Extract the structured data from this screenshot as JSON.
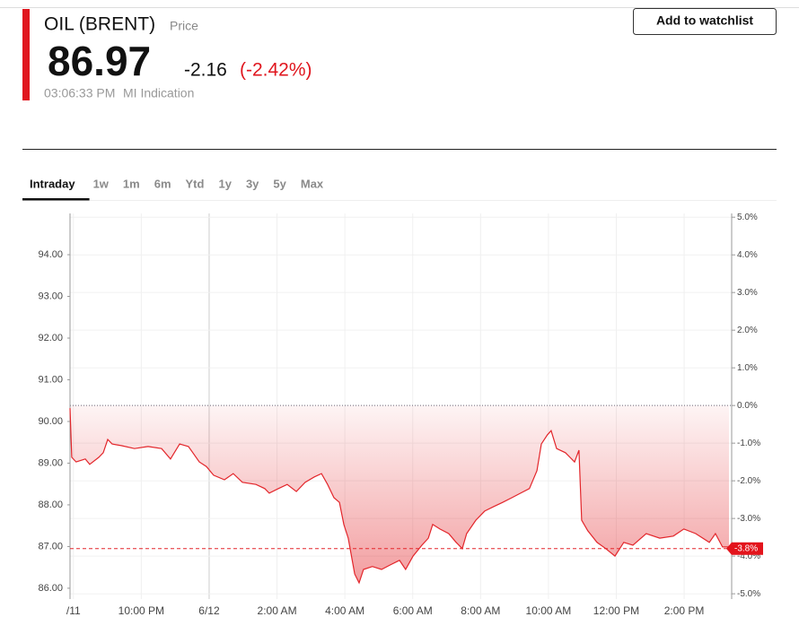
{
  "header": {
    "symbol": "OIL (BRENT)",
    "symbol_note": "Price",
    "price": "86.97",
    "change": "-2.16",
    "change_percent": "(-2.42%)",
    "time": "03:06:33 PM",
    "source": "MI Indication",
    "button": "Add to watchlist"
  },
  "tabs": [
    "Intraday",
    "1w",
    "1m",
    "6m",
    "Ytd",
    "1y",
    "3y",
    "5y",
    "Max"
  ],
  "selected_tab": "Intraday",
  "chart_data": {
    "type": "area",
    "series": [
      {
        "name": "OIL (BRENT)",
        "color": "#e3262b",
        "x": [
          -4.1,
          -4.05,
          -3.92,
          -3.65,
          -3.52,
          -3.25,
          -3.12,
          -2.99,
          -2.86,
          -2.59,
          -2.2,
          -1.8,
          -1.4,
          -1.14,
          -0.87,
          -0.61,
          -0.48,
          -0.29,
          -0.08,
          0.13,
          0.45,
          0.71,
          0.98,
          1.38,
          1.64,
          1.77,
          2.04,
          2.3,
          2.57,
          2.83,
          3.1,
          3.31,
          3.49,
          3.68,
          3.84,
          3.97,
          4.1,
          4.29,
          4.42,
          4.55,
          4.81,
          5.08,
          5.34,
          5.61,
          5.79,
          6.01,
          6.27,
          6.46,
          6.59,
          6.8,
          7.06,
          7.28,
          7.46,
          7.59,
          7.86,
          8.12,
          8.39,
          8.65,
          8.92,
          9.18,
          9.44,
          9.66,
          9.79,
          9.97,
          10.08,
          10.24,
          10.5,
          10.77,
          10.9,
          10.98,
          11.16,
          11.43,
          11.69,
          11.96,
          12.22,
          12.49,
          12.88,
          13.28,
          13.68,
          13.99,
          14.34,
          14.74,
          14.92,
          15.13,
          15.32
        ],
        "values": [
          90.32,
          89.14,
          89.03,
          89.1,
          88.97,
          89.14,
          89.25,
          89.57,
          89.46,
          89.42,
          89.35,
          89.4,
          89.35,
          89.1,
          89.46,
          89.4,
          89.25,
          89.03,
          88.92,
          88.71,
          88.6,
          88.75,
          88.54,
          88.49,
          88.39,
          88.28,
          88.39,
          88.49,
          88.32,
          88.54,
          88.67,
          88.75,
          88.49,
          88.17,
          88.06,
          87.53,
          87.2,
          86.34,
          86.13,
          86.45,
          86.52,
          86.45,
          86.56,
          86.67,
          86.45,
          86.77,
          87.03,
          87.2,
          87.53,
          87.42,
          87.31,
          87.1,
          86.95,
          87.31,
          87.63,
          87.85,
          87.96,
          88.06,
          88.17,
          88.28,
          88.39,
          88.82,
          89.46,
          89.68,
          89.78,
          89.35,
          89.25,
          89.03,
          89.31,
          87.63,
          87.38,
          87.1,
          86.95,
          86.77,
          87.1,
          87.03,
          87.31,
          87.2,
          87.25,
          87.42,
          87.31,
          87.1,
          87.31,
          86.99,
          86.99
        ]
      }
    ],
    "xlim": [
      -4.1,
      15.4
    ],
    "xticks": [
      {
        "value": -4,
        "label": "/11"
      },
      {
        "value": -2,
        "label": "10:00 PM"
      },
      {
        "value": 0,
        "label": "6/12"
      },
      {
        "value": 2,
        "label": "2:00 AM"
      },
      {
        "value": 4,
        "label": "4:00 AM"
      },
      {
        "value": 6,
        "label": "6:00 AM"
      },
      {
        "value": 8,
        "label": "8:00 AM"
      },
      {
        "value": 10,
        "label": "10:00 AM"
      },
      {
        "value": 12,
        "label": "12:00 PM"
      },
      {
        "value": 14,
        "label": "2:00 PM"
      }
    ],
    "ylim": [
      85.74,
      94.99
    ],
    "yticks": [
      {
        "value": 86,
        "label": "86.00"
      },
      {
        "value": 87,
        "label": "87.00"
      },
      {
        "value": 88,
        "label": "88.00"
      },
      {
        "value": 89,
        "label": "89.00"
      },
      {
        "value": 90,
        "label": "90.00"
      },
      {
        "value": 91,
        "label": "91.00"
      },
      {
        "value": 92,
        "label": "92.00"
      },
      {
        "value": 93,
        "label": "93.00"
      },
      {
        "value": 94,
        "label": "94.00"
      }
    ],
    "y2lim": [
      -5.14,
      5.1
    ],
    "y2ticks": [
      {
        "value": 5,
        "label": "5.0%"
      },
      {
        "value": 4,
        "label": "4.0%"
      },
      {
        "value": 3,
        "label": "3.0%"
      },
      {
        "value": 2,
        "label": "2.0%"
      },
      {
        "value": 1,
        "label": "1.0%"
      },
      {
        "value": 0,
        "label": "0.0%"
      },
      {
        "value": -1,
        "label": "-1.0%"
      },
      {
        "value": -2,
        "label": "-2.0%"
      },
      {
        "value": -3,
        "label": "-3.0%"
      },
      {
        "value": -4,
        "label": "-4.0%"
      },
      {
        "value": -5,
        "label": "-5.0%"
      }
    ],
    "current_change": {
      "value": -3.8,
      "label": "-3.8%"
    },
    "grid": true
  }
}
